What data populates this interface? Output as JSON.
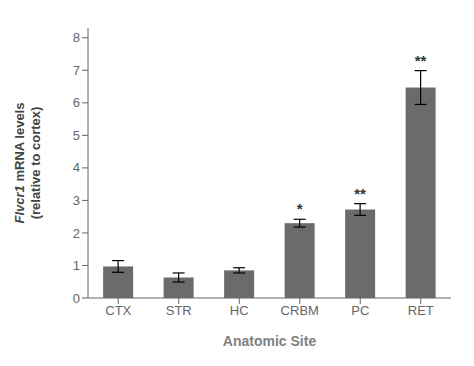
{
  "chart_data": {
    "type": "bar",
    "categories": [
      "CTX",
      "STR",
      "HC",
      "CRBM",
      "PC",
      "RET"
    ],
    "values": [
      0.97,
      0.63,
      0.85,
      2.3,
      2.72,
      6.47
    ],
    "errors": [
      0.18,
      0.14,
      0.08,
      0.12,
      0.18,
      0.52
    ],
    "color": "#6b6b6b",
    "annotations": [
      {
        "x": "CRBM",
        "text": "*"
      },
      {
        "x": "PC",
        "text": "**"
      },
      {
        "x": "RET",
        "text": "**"
      }
    ],
    "xlabel": "Anatomic Site",
    "ylabel": "Flvcr1 mRNA levels\n(relative to cortex)",
    "ylim": [
      0,
      8.3
    ],
    "yticks": [
      0,
      1,
      2,
      3,
      4,
      5,
      6,
      7,
      8
    ],
    "grid": false
  }
}
